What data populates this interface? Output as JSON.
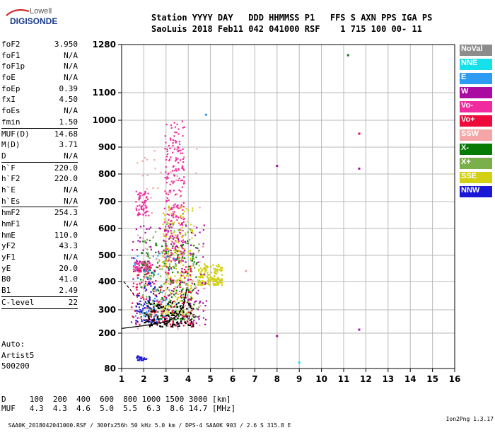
{
  "logo": {
    "top": "Lowell",
    "bottom": "DIGISONDE"
  },
  "header": {
    "line1": "Station YYYY DAY   DDD HHMMSS P1   FFS S AXN PPS IGA PS",
    "line2": "SaoLuis 2018 Feb11 042 041000 RSF    1 715 100 00- 11"
  },
  "params": [
    {
      "label": "foF2",
      "value": "3.950"
    },
    {
      "label": "foF1",
      "value": "N/A"
    },
    {
      "label": "foF1p",
      "value": "N/A"
    },
    {
      "label": "foE",
      "value": "N/A"
    },
    {
      "label": "foEp",
      "value": "0.39"
    },
    {
      "label": "fxI",
      "value": "4.50"
    },
    {
      "label": "foEs",
      "value": "N/A"
    },
    {
      "label": "fmin",
      "value": "1.50"
    },
    {
      "label": "MUF(D)",
      "value": "14.68"
    },
    {
      "label": "M(D)",
      "value": "3.71"
    },
    {
      "label": "D",
      "value": "N/A"
    },
    {
      "label": "h`F",
      "value": "220.0"
    },
    {
      "label": "h`F2",
      "value": "220.0"
    },
    {
      "label": "h`E",
      "value": "N/A"
    },
    {
      "label": "h`Es",
      "value": "N/A"
    },
    {
      "label": "hmF2",
      "value": "254.3"
    },
    {
      "label": "hmF1",
      "value": "N/A"
    },
    {
      "label": "hmE",
      "value": "110.0"
    },
    {
      "label": "yF2",
      "value": "43.3"
    },
    {
      "label": "yF1",
      "value": "N/A"
    },
    {
      "label": "yE",
      "value": "20.0"
    },
    {
      "label": "B0",
      "value": "41.0"
    },
    {
      "label": "B1",
      "value": "2.49"
    },
    {
      "label": "C-level",
      "value": "22"
    }
  ],
  "auto": {
    "line1": "Auto:",
    "line2": "Artist5",
    "line3": "500200"
  },
  "muf_table": {
    "d_row": "D     100  200  400  600  800 1000 1500 3000 [km]",
    "muf_row": "MUF   4.3  4.3  4.6  5.0  5.5  6.3  8.6 14.7 [MHz]"
  },
  "footer": {
    "left": "SAA0K_2018042041000.RSF / 300fx256h 50 kHz 5.0 km / DPS-4 SAA0K 903 / 2.6 S 315.8 E",
    "right": "Ion2Png 1.3.17"
  },
  "legend": [
    {
      "label": "NoVal",
      "color": "#8c8c8c"
    },
    {
      "label": "NNE",
      "color": "#16e0ea"
    },
    {
      "label": "E",
      "color": "#2c9cf2"
    },
    {
      "label": "W",
      "color": "#aa0aa2"
    },
    {
      "label": "Vo-",
      "color": "#f02b9e"
    },
    {
      "label": "Vo+",
      "color": "#ee0a3a"
    },
    {
      "label": "SSW",
      "color": "#f4a6a6"
    },
    {
      "label": "X-",
      "color": "#067c06"
    },
    {
      "label": "X+",
      "color": "#7ab04a"
    },
    {
      "label": "SSE",
      "color": "#d2d014"
    },
    {
      "label": "NNW",
      "color": "#1a18d6"
    }
  ],
  "chart_data": {
    "type": "scatter",
    "xlabel": "",
    "ylabel": "",
    "xlim": [
      1,
      16
    ],
    "ylim": [
      80,
      1280
    ],
    "x_ticks": [
      1,
      2,
      3,
      4,
      5,
      6,
      7,
      8,
      9,
      10,
      11,
      12,
      13,
      14,
      15,
      16
    ],
    "y_ticks": [
      80,
      200,
      300,
      400,
      500,
      600,
      700,
      800,
      900,
      1000,
      1100,
      1280
    ],
    "grid": true,
    "clusters": [
      {
        "color": "#f02b9e",
        "x": [
          1.5,
          2.3
        ],
        "y": [
          440,
          480
        ],
        "n": 90
      },
      {
        "color": "#f02b9e",
        "x": [
          1.6,
          2.2
        ],
        "y": [
          650,
          740
        ],
        "n": 60
      },
      {
        "color": "#f02b9e",
        "x": [
          2.9,
          3.8
        ],
        "y": [
          480,
          1000
        ],
        "n": 260
      },
      {
        "color": "#d2d014",
        "x": [
          2.8,
          4.2
        ],
        "y": [
          280,
          700
        ],
        "n": 200
      },
      {
        "color": "#d2d014",
        "x": [
          4.4,
          5.5
        ],
        "y": [
          390,
          470
        ],
        "n": 160
      },
      {
        "color": "#067c06",
        "x": [
          1.8,
          4.4
        ],
        "y": [
          260,
          560
        ],
        "n": 180
      },
      {
        "color": "#7ab04a",
        "x": [
          1.8,
          4.5
        ],
        "y": [
          260,
          620
        ],
        "n": 120
      },
      {
        "color": "#aa0aa2",
        "x": [
          1.4,
          4.8
        ],
        "y": [
          240,
          620
        ],
        "n": 160
      },
      {
        "color": "#ee0a3a",
        "x": [
          1.4,
          4.2
        ],
        "y": [
          230,
          470
        ],
        "n": 160
      },
      {
        "color": "#1a18d6",
        "x": [
          1.6,
          2.6
        ],
        "y": [
          250,
          400
        ],
        "n": 60
      },
      {
        "color": "#1a18d6",
        "x": [
          1.6,
          2.1
        ],
        "y": [
          110,
          125
        ],
        "n": 25
      },
      {
        "color": "#2c9cf2",
        "x": [
          1.5,
          3.5
        ],
        "y": [
          260,
          520
        ],
        "n": 50
      },
      {
        "color": "#f4a6a6",
        "x": [
          1.5,
          4.8
        ],
        "y": [
          220,
          900
        ],
        "n": 80
      },
      {
        "color": "#000000",
        "x": [
          2.0,
          4.2
        ],
        "y": [
          230,
          330
        ],
        "n": 120
      }
    ],
    "sparse_points": [
      {
        "x": 11.2,
        "y": 1240,
        "color": "#067c06"
      },
      {
        "x": 11.7,
        "y": 950,
        "color": "#ee0a3a"
      },
      {
        "x": 11.7,
        "y": 820,
        "color": "#aa0aa2"
      },
      {
        "x": 8.0,
        "y": 830,
        "color": "#aa0aa2"
      },
      {
        "x": 8.0,
        "y": 190,
        "color": "#aa0aa2"
      },
      {
        "x": 11.7,
        "y": 215,
        "color": "#aa0aa2"
      },
      {
        "x": 9.0,
        "y": 100,
        "color": "#16e0ea"
      },
      {
        "x": 4.8,
        "y": 1020,
        "color": "#2c9cf2"
      },
      {
        "x": 6.6,
        "y": 440,
        "color": "#f4a6a6"
      }
    ],
    "trace": {
      "color": "#000000",
      "x": [
        1.0,
        1.5,
        2.0,
        2.5,
        3.0,
        3.3,
        3.6,
        3.8,
        3.95
      ],
      "y": [
        220,
        226,
        232,
        240,
        250,
        262,
        285,
        320,
        380
      ]
    },
    "dashed_trace": {
      "color": "#000000",
      "x": [
        1.1,
        1.3,
        1.5,
        1.6
      ],
      "y": [
        400,
        380,
        360,
        345
      ]
    }
  }
}
